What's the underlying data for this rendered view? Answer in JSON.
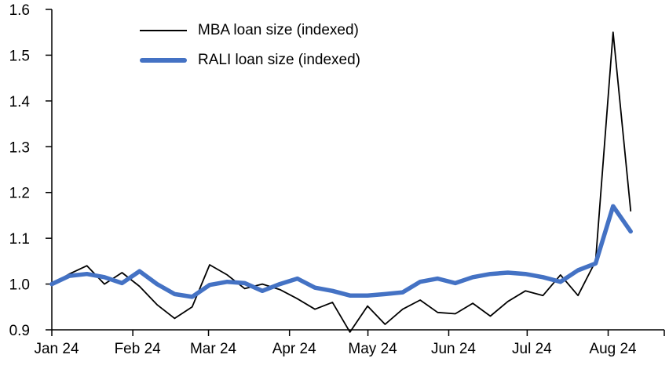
{
  "chart_data": {
    "type": "line",
    "title": "",
    "xlabel": "",
    "ylabel": "",
    "x_tick_labels": [
      "Jan 24",
      "Feb 24",
      "Mar 24",
      "Apr 24",
      "May 24",
      "Jun 24",
      "Jul 24",
      "Aug 24"
    ],
    "y_ticks": [
      0.9,
      1.0,
      1.1,
      1.2,
      1.3,
      1.4,
      1.5,
      1.6
    ],
    "ylim": [
      0.9,
      1.6
    ],
    "grid": false,
    "legend_position": "top-left-inside",
    "series": [
      {
        "name": "MBA loan size (indexed)",
        "color": "#000000",
        "width": 1.8,
        "values": [
          1.0,
          1.022,
          1.04,
          1.0,
          1.025,
          0.995,
          0.955,
          0.925,
          0.95,
          1.042,
          1.02,
          0.99,
          1.0,
          0.988,
          0.968,
          0.945,
          0.96,
          0.895,
          0.952,
          0.912,
          0.945,
          0.965,
          0.938,
          0.935,
          0.958,
          0.93,
          0.962,
          0.985,
          0.975,
          1.02,
          0.975,
          1.05,
          1.55,
          1.16
        ]
      },
      {
        "name": "RALI loan size (indexed)",
        "color": "#4472C4",
        "width": 5.5,
        "values": [
          1.0,
          1.018,
          1.022,
          1.015,
          1.002,
          1.028,
          1.0,
          0.978,
          0.972,
          0.998,
          1.005,
          1.002,
          0.985,
          1.0,
          1.012,
          0.992,
          0.985,
          0.975,
          0.975,
          0.978,
          0.982,
          1.005,
          1.012,
          1.002,
          1.015,
          1.022,
          1.025,
          1.022,
          1.015,
          1.005,
          1.03,
          1.045,
          1.17,
          1.115
        ]
      }
    ],
    "layout": {
      "month_tick_weeks": [
        0,
        4.43,
        8.57,
        13.0,
        17.29,
        21.71,
        26.0,
        30.43
      ],
      "x_span_weeks": 31.66,
      "x_domain_max": 33.5
    }
  }
}
